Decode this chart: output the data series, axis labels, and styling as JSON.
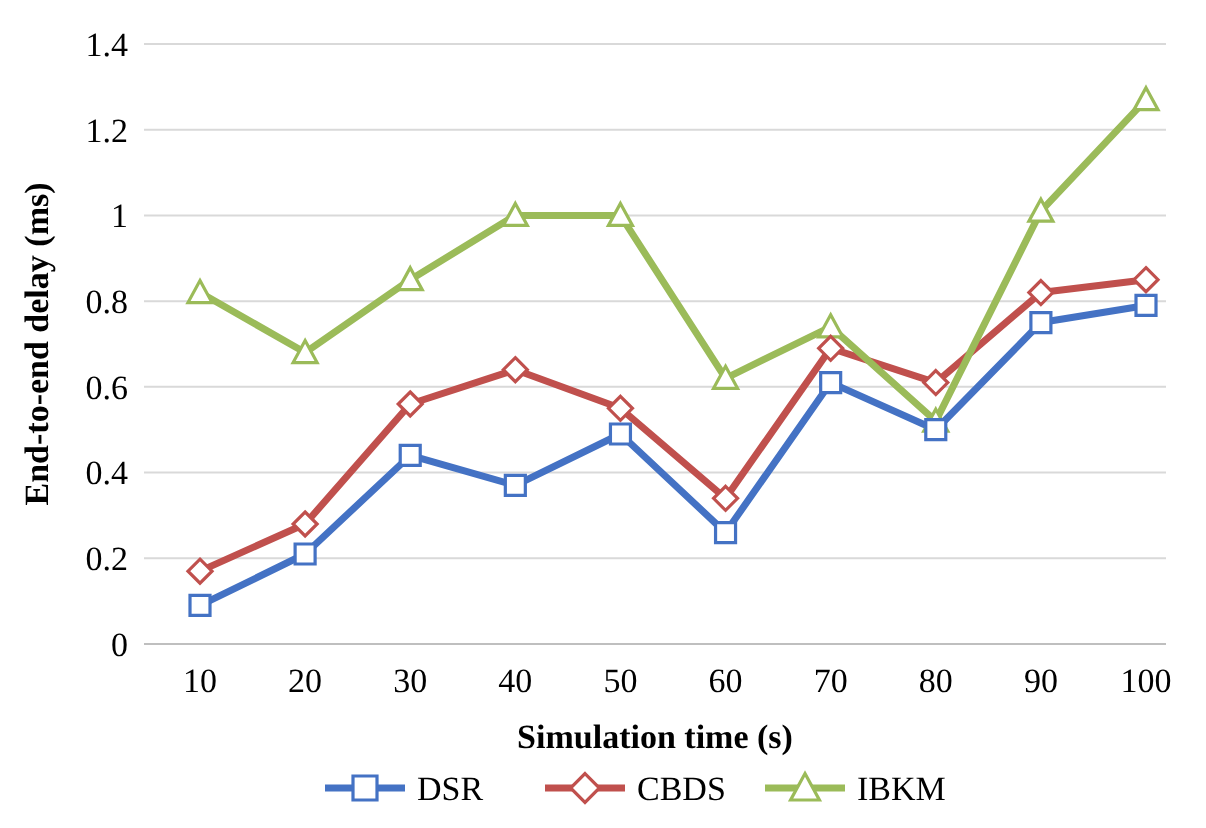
{
  "chart_data": {
    "type": "line",
    "xlabel": "Simulation time (s)",
    "ylabel": "End-to-end delay (ms)",
    "categories": [
      "10",
      "20",
      "30",
      "40",
      "50",
      "60",
      "70",
      "80",
      "90",
      "100"
    ],
    "ylim": [
      0,
      1.4
    ],
    "yticks": [
      0,
      0.2,
      0.4,
      0.6,
      0.8,
      1,
      1.2,
      1.4
    ],
    "grid": "y",
    "legend": "bottom",
    "series": [
      {
        "name": "DSR",
        "color": "#4472c4",
        "marker": "square",
        "values": [
          0.09,
          0.21,
          0.44,
          0.37,
          0.49,
          0.26,
          0.61,
          0.5,
          0.75,
          0.79
        ]
      },
      {
        "name": "CBDS",
        "color": "#c0504d",
        "marker": "diamond",
        "values": [
          0.17,
          0.28,
          0.56,
          0.64,
          0.55,
          0.34,
          0.69,
          0.61,
          0.82,
          0.85
        ]
      },
      {
        "name": "IBKM",
        "color": "#9bbb59",
        "marker": "triangle",
        "values": [
          0.82,
          0.68,
          0.85,
          1,
          1,
          0.62,
          0.74,
          0.52,
          1.01,
          1.27
        ]
      }
    ]
  }
}
